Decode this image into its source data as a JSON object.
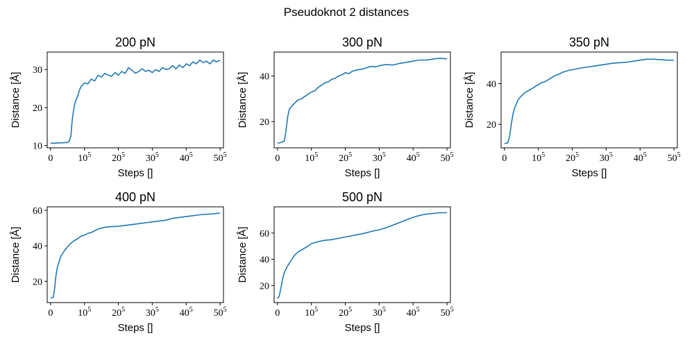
{
  "figure": {
    "suptitle": "Pseudoknot 2 distances"
  },
  "colors": {
    "series": "#1f77b4"
  },
  "chart_data": [
    {
      "type": "line",
      "title": "200 pN",
      "xlabel": "Steps []",
      "ylabel": "Distance [Å]",
      "xlim": [
        -0.1,
        5.1
      ],
      "ylim": [
        9.4,
        34.6
      ],
      "xticks": [
        {
          "v": 0,
          "base": "0",
          "sup": ""
        },
        {
          "v": 1,
          "base": "10",
          "sup": "5"
        },
        {
          "v": 2,
          "base": "20",
          "sup": "5"
        },
        {
          "v": 3,
          "base": "30",
          "sup": "5"
        },
        {
          "v": 4,
          "base": "40",
          "sup": "5"
        },
        {
          "v": 5,
          "base": "50",
          "sup": "5"
        }
      ],
      "yticks": [
        10,
        20,
        30
      ],
      "x": [
        0,
        0.25,
        0.5,
        0.55,
        0.6,
        0.62,
        0.65,
        0.7,
        0.75,
        0.8,
        0.85,
        0.9,
        0.95,
        1.0,
        1.1,
        1.2,
        1.3,
        1.4,
        1.5,
        1.6,
        1.7,
        1.8,
        1.9,
        2.0,
        2.1,
        2.2,
        2.3,
        2.4,
        2.5,
        2.6,
        2.7,
        2.8,
        2.9,
        3.0,
        3.1,
        3.2,
        3.3,
        3.4,
        3.5,
        3.6,
        3.7,
        3.8,
        3.9,
        4.0,
        4.1,
        4.2,
        4.3,
        4.4,
        4.5,
        4.6,
        4.7,
        4.8,
        4.9,
        5.0
      ],
      "y": [
        10.6,
        10.7,
        10.8,
        11.2,
        12.5,
        15.0,
        17.5,
        20.5,
        22.0,
        23.0,
        24.5,
        25.5,
        26.0,
        26.5,
        26.2,
        27.5,
        27.0,
        28.5,
        28.0,
        29.0,
        28.5,
        28.2,
        29.2,
        28.5,
        29.5,
        29.0,
        30.5,
        29.8,
        29.0,
        29.5,
        30.2,
        29.5,
        29.8,
        29.2,
        30.0,
        29.5,
        30.5,
        30.0,
        30.2,
        31.0,
        30.2,
        31.2,
        30.5,
        31.5,
        31.0,
        32.0,
        31.5,
        32.5,
        31.8,
        32.2,
        31.5,
        32.5,
        32.0,
        32.5
      ]
    },
    {
      "type": "line",
      "title": "300 pN",
      "xlabel": "Steps []",
      "ylabel": "Distance [Å]",
      "xlim": [
        -0.1,
        5.1
      ],
      "ylim": [
        8.5,
        50.5
      ],
      "xticks": [
        {
          "v": 0,
          "base": "0",
          "sup": ""
        },
        {
          "v": 1,
          "base": "10",
          "sup": "5"
        },
        {
          "v": 2,
          "base": "20",
          "sup": "5"
        },
        {
          "v": 3,
          "base": "30",
          "sup": "5"
        },
        {
          "v": 4,
          "base": "40",
          "sup": "5"
        },
        {
          "v": 5,
          "base": "50",
          "sup": "5"
        }
      ],
      "yticks": [
        20,
        40
      ],
      "x": [
        0,
        0.1,
        0.2,
        0.25,
        0.3,
        0.35,
        0.4,
        0.5,
        0.6,
        0.7,
        0.8,
        0.9,
        1.0,
        1.1,
        1.2,
        1.3,
        1.4,
        1.5,
        1.6,
        1.7,
        1.8,
        1.9,
        2.0,
        2.1,
        2.2,
        2.3,
        2.4,
        2.5,
        2.6,
        2.7,
        2.8,
        2.9,
        3.0,
        3.2,
        3.4,
        3.6,
        3.8,
        4.0,
        4.2,
        4.4,
        4.6,
        4.8,
        5.0
      ],
      "y": [
        10.5,
        10.8,
        11.5,
        16.0,
        22.0,
        25.5,
        26.5,
        28.0,
        29.5,
        30.0,
        31.0,
        32.0,
        33.0,
        33.5,
        35.0,
        36.0,
        37.0,
        37.5,
        38.5,
        39.0,
        40.0,
        40.5,
        41.5,
        41.0,
        42.0,
        42.5,
        42.8,
        43.0,
        43.5,
        44.0,
        44.2,
        44.0,
        44.5,
        45.0,
        44.8,
        45.5,
        46.0,
        46.5,
        47.0,
        47.0,
        47.5,
        47.8,
        47.5
      ]
    },
    {
      "type": "line",
      "title": "350 pN",
      "xlabel": "Steps []",
      "ylabel": "Distance [Å]",
      "xlim": [
        -0.1,
        5.1
      ],
      "ylim": [
        8.5,
        55.5
      ],
      "xticks": [
        {
          "v": 0,
          "base": "0",
          "sup": ""
        },
        {
          "v": 1,
          "base": "10",
          "sup": "5"
        },
        {
          "v": 2,
          "base": "20",
          "sup": "5"
        },
        {
          "v": 3,
          "base": "30",
          "sup": "5"
        },
        {
          "v": 4,
          "base": "40",
          "sup": "5"
        },
        {
          "v": 5,
          "base": "50",
          "sup": "5"
        }
      ],
      "yticks": [
        20,
        40
      ],
      "x": [
        0,
        0.1,
        0.15,
        0.2,
        0.25,
        0.3,
        0.35,
        0.4,
        0.5,
        0.6,
        0.7,
        0.8,
        0.9,
        1.0,
        1.1,
        1.2,
        1.3,
        1.4,
        1.5,
        1.6,
        1.7,
        1.8,
        1.9,
        2.0,
        2.2,
        2.4,
        2.6,
        2.8,
        3.0,
        3.2,
        3.4,
        3.6,
        3.8,
        4.0,
        4.2,
        4.4,
        4.6,
        4.8,
        5.0
      ],
      "y": [
        10.5,
        11.0,
        14.0,
        20.0,
        25.0,
        28.0,
        30.0,
        32.0,
        34.0,
        35.5,
        36.5,
        37.5,
        38.5,
        39.5,
        40.5,
        41.0,
        42.0,
        43.0,
        44.0,
        44.5,
        45.5,
        46.0,
        46.5,
        46.8,
        47.5,
        48.0,
        48.5,
        49.0,
        49.5,
        50.0,
        50.3,
        50.5,
        51.0,
        51.5,
        52.0,
        52.0,
        51.8,
        51.5,
        51.5
      ]
    },
    {
      "type": "line",
      "title": "400 pN",
      "xlabel": "Steps []",
      "ylabel": "Distance [Å]",
      "xlim": [
        -0.1,
        5.1
      ],
      "ylim": [
        8.0,
        62.0
      ],
      "xticks": [
        {
          "v": 0,
          "base": "0",
          "sup": ""
        },
        {
          "v": 1,
          "base": "10",
          "sup": "5"
        },
        {
          "v": 2,
          "base": "20",
          "sup": "5"
        },
        {
          "v": 3,
          "base": "30",
          "sup": "5"
        },
        {
          "v": 4,
          "base": "40",
          "sup": "5"
        },
        {
          "v": 5,
          "base": "50",
          "sup": "5"
        }
      ],
      "yticks": [
        20,
        40,
        60
      ],
      "x": [
        0,
        0.08,
        0.12,
        0.15,
        0.2,
        0.25,
        0.3,
        0.4,
        0.5,
        0.6,
        0.7,
        0.8,
        0.9,
        1.0,
        1.1,
        1.2,
        1.3,
        1.4,
        1.5,
        1.6,
        1.8,
        2.0,
        2.2,
        2.4,
        2.6,
        2.8,
        3.0,
        3.2,
        3.4,
        3.6,
        3.8,
        4.0,
        4.2,
        4.4,
        4.6,
        4.8,
        5.0
      ],
      "y": [
        10.5,
        11.0,
        16.0,
        22.0,
        28.0,
        31.0,
        34.0,
        37.0,
        39.5,
        41.5,
        43.0,
        44.0,
        45.5,
        46.0,
        47.0,
        47.5,
        48.5,
        49.5,
        50.0,
        50.5,
        50.8,
        51.0,
        51.5,
        52.0,
        52.5,
        53.0,
        53.5,
        54.0,
        54.5,
        55.5,
        56.0,
        56.5,
        57.0,
        57.5,
        57.8,
        58.0,
        58.5
      ]
    },
    {
      "type": "line",
      "title": "500 pN",
      "xlabel": "Steps []",
      "ylabel": "Distance [Å]",
      "xlim": [
        -0.1,
        5.1
      ],
      "ylim": [
        7.0,
        80.0
      ],
      "xticks": [
        {
          "v": 0,
          "base": "0",
          "sup": ""
        },
        {
          "v": 1,
          "base": "10",
          "sup": "5"
        },
        {
          "v": 2,
          "base": "20",
          "sup": "5"
        },
        {
          "v": 3,
          "base": "30",
          "sup": "5"
        },
        {
          "v": 4,
          "base": "40",
          "sup": "5"
        },
        {
          "v": 5,
          "base": "50",
          "sup": "5"
        }
      ],
      "yticks": [
        20,
        40,
        60
      ],
      "x": [
        0,
        0.05,
        0.1,
        0.15,
        0.2,
        0.3,
        0.4,
        0.5,
        0.6,
        0.7,
        0.8,
        0.9,
        1.0,
        1.2,
        1.4,
        1.6,
        1.8,
        2.0,
        2.2,
        2.4,
        2.6,
        2.8,
        3.0,
        3.2,
        3.4,
        3.6,
        3.8,
        4.0,
        4.2,
        4.4,
        4.6,
        4.8,
        5.0
      ],
      "y": [
        10.0,
        12.0,
        18.0,
        25.0,
        30.0,
        35.0,
        39.0,
        43.0,
        45.5,
        47.0,
        48.5,
        50.0,
        52.0,
        53.5,
        54.5,
        55.0,
        56.0,
        57.0,
        58.0,
        59.0,
        60.0,
        61.5,
        62.5,
        64.0,
        66.0,
        68.0,
        70.0,
        72.0,
        73.5,
        74.5,
        75.0,
        75.5,
        75.5
      ]
    }
  ]
}
